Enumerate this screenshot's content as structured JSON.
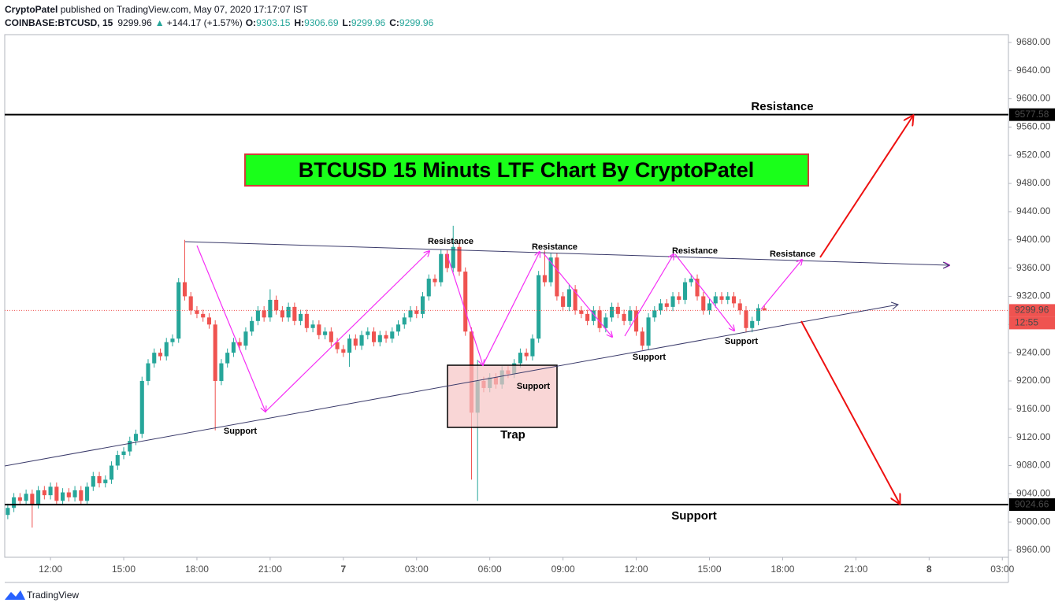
{
  "chart_data": {
    "type": "candlestick",
    "header": {
      "author": "CryptoPatel",
      "published": " published on TradingView.com, May 07, 2020 17:17:07 IST",
      "symbol": "COINBASE:BTCUSD, 15",
      "arrow": "▲",
      "change": "+144.17 (+1.57%)",
      "ohlc_labels": [
        "O:",
        "H:",
        "L:",
        "C:"
      ]
    },
    "title": "BTCUSD 15 Minuts LTF Chart By CryptoPatel",
    "up_color": "#26a69a",
    "down_color": "#ef5350",
    "open": [
      9010,
      9020,
      9035,
      9030,
      9040,
      9025,
      9045,
      9038,
      9050,
      9030,
      9042,
      9035,
      9045,
      9030,
      9050,
      9065,
      9055,
      9060,
      9080,
      9095,
      9100,
      9115,
      9125,
      9200,
      9225,
      9240,
      9235,
      9255,
      9260,
      9340,
      9320,
      9300,
      9295,
      9290,
      9280,
      9200,
      9225,
      9240,
      9255,
      9250,
      9270,
      9285,
      9300,
      9290,
      9315,
      9300,
      9290,
      9305,
      9285,
      9295,
      9275,
      9280,
      9265,
      9270,
      9255,
      9245,
      9240,
      9260,
      9250,
      9265,
      9270,
      9255,
      9265,
      9260,
      9270,
      9280,
      9290,
      9300,
      9295,
      9320,
      9345,
      9340,
      9380,
      9360,
      9390,
      9355,
      9270,
      9155,
      9200,
      9190,
      9205,
      9195,
      9215,
      9210,
      9225,
      9240,
      9235,
      9260,
      9350,
      9340,
      9375,
      9320,
      9305,
      9330,
      9300,
      9295,
      9285,
      9300,
      9275,
      9290,
      9305,
      9295,
      9285,
      9300,
      9270,
      9250,
      9290,
      9300,
      9310,
      9305,
      9320,
      9315,
      9340,
      9345,
      9320,
      9300,
      9310,
      9320,
      9315,
      9320,
      9310,
      9300,
      9275,
      9285,
      9303.15
    ],
    "high": [
      9026,
      9041,
      9041,
      9046,
      9046,
      9051,
      9051,
      9056,
      9056,
      9048,
      9048,
      9051,
      9051,
      9056,
      9071,
      9071,
      9066,
      9086,
      9101,
      9106,
      9121,
      9131,
      9206,
      9231,
      9246,
      9246,
      9261,
      9266,
      9346,
      9400,
      9326,
      9306,
      9301,
      9296,
      9286,
      9231,
      9246,
      9261,
      9261,
      9276,
      9291,
      9306,
      9306,
      9330,
      9321,
      9306,
      9311,
      9311,
      9301,
      9301,
      9286,
      9286,
      9276,
      9276,
      9261,
      9251,
      9266,
      9266,
      9271,
      9276,
      9276,
      9271,
      9271,
      9276,
      9286,
      9296,
      9306,
      9306,
      9326,
      9351,
      9351,
      9386,
      9386,
      9420,
      9396,
      9361,
      9276,
      9230,
      9206,
      9211,
      9211,
      9221,
      9221,
      9231,
      9246,
      9246,
      9266,
      9356,
      9385,
      9381,
      9381,
      9326,
      9336,
      9336,
      9306,
      9301,
      9306,
      9306,
      9296,
      9311,
      9311,
      9301,
      9306,
      9306,
      9276,
      9296,
      9306,
      9316,
      9316,
      9326,
      9326,
      9346,
      9351,
      9351,
      9326,
      9316,
      9326,
      9326,
      9326,
      9326,
      9316,
      9306,
      9291,
      9309,
      9306.69
    ],
    "low": [
      9004,
      9014,
      9024,
      9024,
      8992,
      9019,
      9032,
      9032,
      9024,
      9024,
      9029,
      9029,
      9024,
      9024,
      9044,
      9049,
      9049,
      9054,
      9074,
      9089,
      9094,
      9109,
      9119,
      9194,
      9219,
      9229,
      9229,
      9249,
      9254,
      9314,
      9294,
      9289,
      9284,
      9274,
      9130,
      9194,
      9219,
      9234,
      9244,
      9244,
      9264,
      9279,
      9284,
      9284,
      9294,
      9284,
      9284,
      9279,
      9279,
      9269,
      9269,
      9259,
      9259,
      9249,
      9239,
      9234,
      9220,
      9244,
      9244,
      9259,
      9249,
      9249,
      9254,
      9254,
      9264,
      9274,
      9284,
      9289,
      9289,
      9314,
      9334,
      9334,
      9354,
      9354,
      9349,
      9264,
      9060,
      9030,
      9184,
      9184,
      9189,
      9189,
      9204,
      9204,
      9219,
      9229,
      9229,
      9254,
      9334,
      9334,
      9314,
      9299,
      9299,
      9294,
      9289,
      9279,
      9279,
      9269,
      9269,
      9284,
      9289,
      9279,
      9279,
      9264,
      9244,
      9244,
      9284,
      9294,
      9299,
      9299,
      9309,
      9309,
      9334,
      9314,
      9294,
      9294,
      9304,
      9309,
      9309,
      9304,
      9294,
      9269,
      9269,
      9279,
      9299.96
    ],
    "close": [
      9020,
      9035,
      9030,
      9040,
      9025,
      9045,
      9038,
      9050,
      9030,
      9042,
      9035,
      9045,
      9030,
      9050,
      9065,
      9055,
      9060,
      9080,
      9095,
      9100,
      9115,
      9125,
      9200,
      9225,
      9240,
      9235,
      9255,
      9260,
      9340,
      9320,
      9300,
      9295,
      9290,
      9280,
      9200,
      9225,
      9240,
      9255,
      9250,
      9270,
      9285,
      9300,
      9290,
      9315,
      9300,
      9290,
      9305,
      9285,
      9295,
      9275,
      9280,
      9265,
      9270,
      9255,
      9245,
      9240,
      9260,
      9250,
      9265,
      9270,
      9255,
      9265,
      9260,
      9270,
      9280,
      9290,
      9300,
      9295,
      9320,
      9345,
      9340,
      9380,
      9360,
      9390,
      9355,
      9270,
      9155,
      9200,
      9190,
      9205,
      9195,
      9215,
      9210,
      9225,
      9240,
      9235,
      9260,
      9350,
      9340,
      9375,
      9320,
      9305,
      9330,
      9300,
      9295,
      9285,
      9300,
      9275,
      9290,
      9305,
      9295,
      9285,
      9300,
      9270,
      9250,
      9290,
      9300,
      9310,
      9305,
      9320,
      9315,
      9340,
      9345,
      9320,
      9300,
      9310,
      9320,
      9315,
      9320,
      9310,
      9300,
      9275,
      9285,
      9303.15,
      9299.96
    ],
    "ylim": [
      8950,
      9691
    ],
    "yticks": [
      {
        "value": 8960,
        "label": "8960.00"
      },
      {
        "value": 9000,
        "label": "9000.00"
      },
      {
        "value": 9040,
        "label": "9040.00"
      },
      {
        "value": 9080,
        "label": "9080.00"
      },
      {
        "value": 9120,
        "label": "9120.00"
      },
      {
        "value": 9160,
        "label": "9160.00"
      },
      {
        "value": 9200,
        "label": "9200.00"
      },
      {
        "value": 9240,
        "label": "9240.00"
      },
      {
        "value": 9280,
        "label": "9280.00"
      },
      {
        "value": 9320,
        "label": "9320.00"
      },
      {
        "value": 9360,
        "label": "9360.00"
      },
      {
        "value": 9400,
        "label": "9400.00"
      },
      {
        "value": 9440,
        "label": "9440.00"
      },
      {
        "value": 9480,
        "label": "9480.00"
      },
      {
        "value": 9520,
        "label": "9520.00"
      },
      {
        "value": 9560,
        "label": "9560.00"
      },
      {
        "value": 9600,
        "label": "9600.00"
      },
      {
        "value": 9640,
        "label": "9640.00"
      },
      {
        "value": 9680,
        "label": "9680.00"
      }
    ],
    "xlim": [
      -0.5,
      164
    ],
    "xticks": [
      {
        "value": 7,
        "label": "12:00"
      },
      {
        "value": 19,
        "label": "15:00"
      },
      {
        "value": 31,
        "label": "18:00"
      },
      {
        "value": 43,
        "label": "21:00"
      },
      {
        "value": 55,
        "label": "7"
      },
      {
        "value": 67,
        "label": "03:00"
      },
      {
        "value": 79,
        "label": "06:00"
      },
      {
        "value": 91,
        "label": "09:00"
      },
      {
        "value": 103,
        "label": "12:00"
      },
      {
        "value": 115,
        "label": "15:00"
      },
      {
        "value": 127,
        "label": "18:00"
      },
      {
        "value": 139,
        "label": "21:00"
      },
      {
        "value": 151,
        "label": "8"
      },
      {
        "value": 163,
        "label": "03:00"
      }
    ],
    "hlines": [
      9577.58,
      9024.66
    ],
    "countdown": "12:55",
    "grid": false,
    "annotations": [
      "Resistance",
      "Resistance",
      "Resistance",
      "Resistance",
      "Resistance",
      "Support",
      "Support",
      "Support",
      "Support",
      "Support",
      "Trap"
    ],
    "logo": "TradingView"
  }
}
